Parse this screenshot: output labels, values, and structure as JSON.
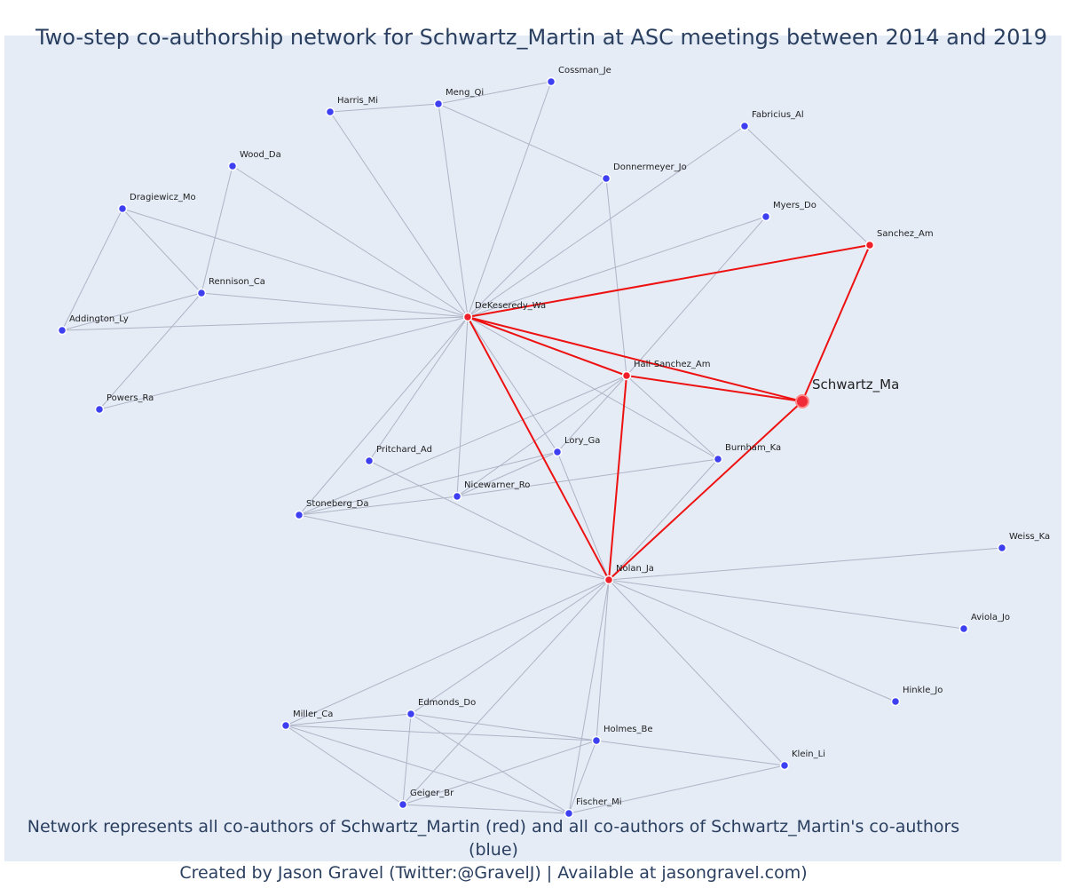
{
  "title": "Two-step co-authorship network for Schwartz_Martin at ASC meetings between 2014 and 2019",
  "footer": {
    "line1": "Network represents all co-authors of Schwartz_Martin (red) and all co-authors of Schwartz_Martin's co-authors (blue)",
    "line2": "Created by Jason Gravel (Twitter:@GravelJ) | Available at jasongravel.com)"
  },
  "colors": {
    "background": "#e5ecf6",
    "first_step_node": "#f0202a",
    "second_step_node": "#3d3ff0",
    "first_step_edge": "#ee1111",
    "second_step_edge": "#b0b4c6"
  },
  "nodes": [
    {
      "id": "Schwartz_Ma",
      "label": "Schwartz_Ma",
      "group": "focal"
    },
    {
      "id": "DeKeseredy_Wa",
      "label": "DeKeseredy_Wa",
      "group": "first"
    },
    {
      "id": "Hall-Sanchez_Am",
      "label": "Hall-Sanchez_Am",
      "group": "first"
    },
    {
      "id": "Sanchez_Am",
      "label": "Sanchez_Am",
      "group": "first"
    },
    {
      "id": "Nolan_Ja",
      "label": "Nolan_Ja",
      "group": "first"
    },
    {
      "id": "Cossman_Je",
      "label": "Cossman_Je",
      "group": "second"
    },
    {
      "id": "Meng_Qi",
      "label": "Meng_Qi",
      "group": "second"
    },
    {
      "id": "Harris_Mi",
      "label": "Harris_Mi",
      "group": "second"
    },
    {
      "id": "Fabricius_Al",
      "label": "Fabricius_Al",
      "group": "second"
    },
    {
      "id": "Wood_Da",
      "label": "Wood_Da",
      "group": "second"
    },
    {
      "id": "Donnermeyer_Jo",
      "label": "Donnermeyer_Jo",
      "group": "second"
    },
    {
      "id": "Dragiewicz_Mo",
      "label": "Dragiewicz_Mo",
      "group": "second"
    },
    {
      "id": "Myers_Do",
      "label": "Myers_Do",
      "group": "second"
    },
    {
      "id": "Rennison_Ca",
      "label": "Rennison_Ca",
      "group": "second"
    },
    {
      "id": "Addington_Ly",
      "label": "Addington_Ly",
      "group": "second"
    },
    {
      "id": "Powers_Ra",
      "label": "Powers_Ra",
      "group": "second"
    },
    {
      "id": "Pritchard_Ad",
      "label": "Pritchard_Ad",
      "group": "second"
    },
    {
      "id": "Lory_Ga",
      "label": "Lory_Ga",
      "group": "second"
    },
    {
      "id": "Burnham_Ka",
      "label": "Burnham_Ka",
      "group": "second"
    },
    {
      "id": "Nicewarner_Ro",
      "label": "Nicewarner_Ro",
      "group": "second"
    },
    {
      "id": "Stoneberg_Da",
      "label": "Stoneberg_Da",
      "group": "second"
    },
    {
      "id": "Weiss_Ka",
      "label": "Weiss_Ka",
      "group": "second"
    },
    {
      "id": "Aviola_Jo",
      "label": "Aviola_Jo",
      "group": "second"
    },
    {
      "id": "Hinkle_Jo",
      "label": "Hinkle_Jo",
      "group": "second"
    },
    {
      "id": "Edmonds_Do",
      "label": "Edmonds_Do",
      "group": "second"
    },
    {
      "id": "Miller_Ca",
      "label": "Miller_Ca",
      "group": "second"
    },
    {
      "id": "Holmes_Be",
      "label": "Holmes_Be",
      "group": "second"
    },
    {
      "id": "Klein_Li",
      "label": "Klein_Li",
      "group": "second"
    },
    {
      "id": "Geiger_Br",
      "label": "Geiger_Br",
      "group": "second"
    },
    {
      "id": "Fischer_Mi",
      "label": "Fischer_Mi",
      "group": "second"
    }
  ],
  "edges_first_step": [
    [
      "DeKeseredy_Wa",
      "Sanchez_Am"
    ],
    [
      "DeKeseredy_Wa",
      "Hall-Sanchez_Am"
    ],
    [
      "DeKeseredy_Wa",
      "Schwartz_Ma"
    ],
    [
      "DeKeseredy_Wa",
      "Nolan_Ja"
    ],
    [
      "Hall-Sanchez_Am",
      "Schwartz_Ma"
    ],
    [
      "Hall-Sanchez_Am",
      "Nolan_Ja"
    ],
    [
      "Sanchez_Am",
      "Schwartz_Ma"
    ],
    [
      "Nolan_Ja",
      "Schwartz_Ma"
    ]
  ],
  "edges_second_step": [
    [
      "Harris_Mi",
      "Meng_Qi"
    ],
    [
      "Meng_Qi",
      "Cossman_Je"
    ],
    [
      "Meng_Qi",
      "Donnermeyer_Jo"
    ],
    [
      "Harris_Mi",
      "DeKeseredy_Wa"
    ],
    [
      "Meng_Qi",
      "DeKeseredy_Wa"
    ],
    [
      "Cossman_Je",
      "DeKeseredy_Wa"
    ],
    [
      "Fabricius_Al",
      "DeKeseredy_Wa"
    ],
    [
      "Fabricius_Al",
      "Sanchez_Am"
    ],
    [
      "Wood_Da",
      "DeKeseredy_Wa"
    ],
    [
      "Wood_Da",
      "Rennison_Ca"
    ],
    [
      "Donnermeyer_Jo",
      "DeKeseredy_Wa"
    ],
    [
      "Donnermeyer_Jo",
      "Hall-Sanchez_Am"
    ],
    [
      "Dragiewicz_Mo",
      "DeKeseredy_Wa"
    ],
    [
      "Dragiewicz_Mo",
      "Rennison_Ca"
    ],
    [
      "Dragiewicz_Mo",
      "Addington_Ly"
    ],
    [
      "Myers_Do",
      "DeKeseredy_Wa"
    ],
    [
      "Myers_Do",
      "Hall-Sanchez_Am"
    ],
    [
      "Rennison_Ca",
      "DeKeseredy_Wa"
    ],
    [
      "Rennison_Ca",
      "Addington_Ly"
    ],
    [
      "Rennison_Ca",
      "Powers_Ra"
    ],
    [
      "Addington_Ly",
      "DeKeseredy_Wa"
    ],
    [
      "Powers_Ra",
      "DeKeseredy_Wa"
    ],
    [
      "Pritchard_Ad",
      "DeKeseredy_Wa"
    ],
    [
      "Pritchard_Ad",
      "Nolan_Ja"
    ],
    [
      "Stoneberg_Da",
      "DeKeseredy_Wa"
    ],
    [
      "Stoneberg_Da",
      "Nicewarner_Ro"
    ],
    [
      "Stoneberg_Da",
      "Lory_Ga"
    ],
    [
      "Stoneberg_Da",
      "Nolan_Ja"
    ],
    [
      "Nicewarner_Ro",
      "DeKeseredy_Wa"
    ],
    [
      "Nicewarner_Ro",
      "Hall-Sanchez_Am"
    ],
    [
      "Nicewarner_Ro",
      "Burnham_Ka"
    ],
    [
      "Nicewarner_Ro",
      "Lory_Ga"
    ],
    [
      "Lory_Ga",
      "DeKeseredy_Wa"
    ],
    [
      "Lory_Ga",
      "Nolan_Ja"
    ],
    [
      "Lory_Ga",
      "Hall-Sanchez_Am"
    ],
    [
      "Burnham_Ka",
      "DeKeseredy_Wa"
    ],
    [
      "Burnham_Ka",
      "Hall-Sanchez_Am"
    ],
    [
      "Burnham_Ka",
      "Nolan_Ja"
    ],
    [
      "Hall-Sanchez_Am",
      "Stoneberg_Da"
    ],
    [
      "Weiss_Ka",
      "Nolan_Ja"
    ],
    [
      "Aviola_Jo",
      "Nolan_Ja"
    ],
    [
      "Hinkle_Jo",
      "Nolan_Ja"
    ],
    [
      "Klein_Li",
      "Nolan_Ja"
    ],
    [
      "Klein_Li",
      "Holmes_Be"
    ],
    [
      "Klein_Li",
      "Fischer_Mi"
    ],
    [
      "Miller_Ca",
      "Nolan_Ja"
    ],
    [
      "Miller_Ca",
      "Edmonds_Do"
    ],
    [
      "Miller_Ca",
      "Holmes_Be"
    ],
    [
      "Miller_Ca",
      "Geiger_Br"
    ],
    [
      "Miller_Ca",
      "Fischer_Mi"
    ],
    [
      "Edmonds_Do",
      "Nolan_Ja"
    ],
    [
      "Edmonds_Do",
      "Holmes_Be"
    ],
    [
      "Edmonds_Do",
      "Geiger_Br"
    ],
    [
      "Edmonds_Do",
      "Fischer_Mi"
    ],
    [
      "Holmes_Be",
      "Nolan_Ja"
    ],
    [
      "Holmes_Be",
      "Geiger_Br"
    ],
    [
      "Holmes_Be",
      "Fischer_Mi"
    ],
    [
      "Geiger_Br",
      "Nolan_Ja"
    ],
    [
      "Geiger_Br",
      "Fischer_Mi"
    ],
    [
      "Fischer_Mi",
      "Nolan_Ja"
    ]
  ]
}
